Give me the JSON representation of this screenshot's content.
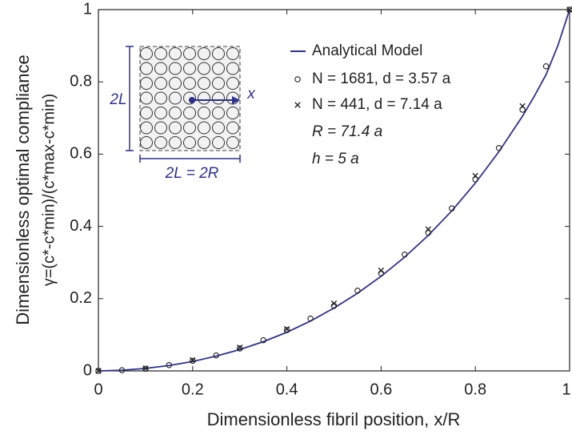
{
  "chart_data": {
    "type": "line",
    "x_label": "Dimensionless fibril position, x/R",
    "y_label": [
      "Dimensionless optimal compliance",
      "γ=(c*-c*min)/(c*max-c*min)"
    ],
    "xlim": [
      0,
      1
    ],
    "ylim": [
      0,
      1
    ],
    "xticks": [
      0,
      0.2,
      0.4,
      0.6,
      0.8,
      1
    ],
    "yticks": [
      0,
      0.2,
      0.4,
      0.6,
      0.8,
      1
    ],
    "series": [
      {
        "name": "Analytical Model",
        "color": "#2e3192",
        "marker": "line",
        "x": [
          0,
          0.05,
          0.1,
          0.15,
          0.2,
          0.25,
          0.3,
          0.35,
          0.4,
          0.45,
          0.5,
          0.55,
          0.6,
          0.65,
          0.7,
          0.75,
          0.8,
          0.85,
          0.9,
          0.925,
          0.95,
          0.975,
          1
        ],
        "values": [
          0,
          0.002,
          0.007,
          0.015,
          0.026,
          0.041,
          0.059,
          0.081,
          0.107,
          0.138,
          0.174,
          0.215,
          0.262,
          0.315,
          0.375,
          0.443,
          0.52,
          0.607,
          0.705,
          0.76,
          0.82,
          0.9,
          1
        ]
      },
      {
        "name": "N = 1681, d = 3.57 a",
        "color": "#222222",
        "marker": "o",
        "x": [
          0,
          0.05,
          0.1,
          0.15,
          0.2,
          0.25,
          0.3,
          0.35,
          0.4,
          0.45,
          0.5,
          0.55,
          0.6,
          0.65,
          0.7,
          0.75,
          0.8,
          0.85,
          0.9,
          0.95,
          1
        ],
        "values": [
          0,
          0.002,
          0.006,
          0.016,
          0.028,
          0.043,
          0.062,
          0.085,
          0.113,
          0.145,
          0.18,
          0.222,
          0.27,
          0.322,
          0.382,
          0.45,
          0.53,
          0.617,
          0.723,
          0.843,
          1
        ]
      },
      {
        "name": "N = 441, d = 7.14 a",
        "color": "#222222",
        "marker": "x",
        "x": [
          0,
          0.1,
          0.2,
          0.3,
          0.4,
          0.5,
          0.6,
          0.7,
          0.8,
          0.9,
          1
        ],
        "values": [
          0,
          0.007,
          0.03,
          0.065,
          0.116,
          0.187,
          0.278,
          0.392,
          0.54,
          0.733,
          1
        ]
      }
    ],
    "annotations": [
      "R = 71.4 a",
      "h = 5 a"
    ],
    "inset_labels": [
      "2L",
      "x",
      "2L = 2R"
    ]
  }
}
